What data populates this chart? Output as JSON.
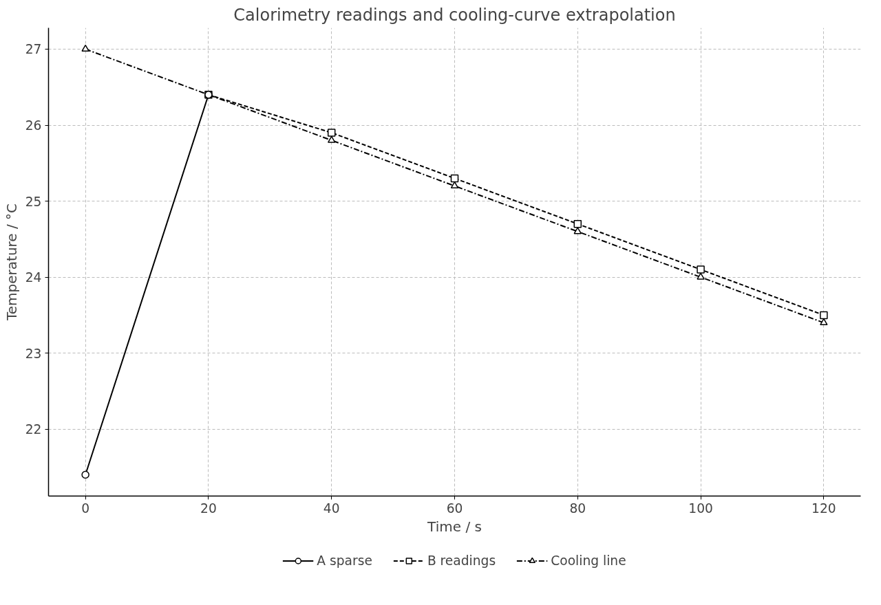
{
  "chart_data": {
    "type": "line",
    "title": "Calorimetry readings and cooling-curve extrapolation",
    "xlabel": "Time / s",
    "ylabel": "Temperature / °C",
    "xlim": [
      -6,
      126
    ],
    "xticks": [
      0,
      20,
      40,
      60,
      80,
      100,
      120
    ],
    "ylim": [
      21.12,
      27.28
    ],
    "yticks": [
      22,
      23,
      24,
      25,
      26,
      27
    ],
    "grid": true,
    "legend": "bottom",
    "series": [
      {
        "name": "A sparse",
        "color": "#000000",
        "x": [
          0,
          20
        ],
        "values": [
          21.4,
          26.4
        ],
        "marker": "circle",
        "line_style": "solid"
      },
      {
        "name": "B readings",
        "color": "#000000",
        "x": [
          20,
          40,
          60,
          80,
          100,
          120
        ],
        "values": [
          26.4,
          25.9,
          25.3,
          24.7,
          24.1,
          23.5
        ],
        "marker": "square",
        "line_style": "dashed"
      },
      {
        "name": "Cooling line",
        "color": "#000000",
        "x": [
          0,
          20,
          40,
          60,
          80,
          100,
          120
        ],
        "values": [
          27.0,
          26.4,
          25.8,
          25.2,
          24.6,
          24.0,
          23.4
        ],
        "marker": "triangle",
        "line_style": "dashdot"
      }
    ]
  }
}
